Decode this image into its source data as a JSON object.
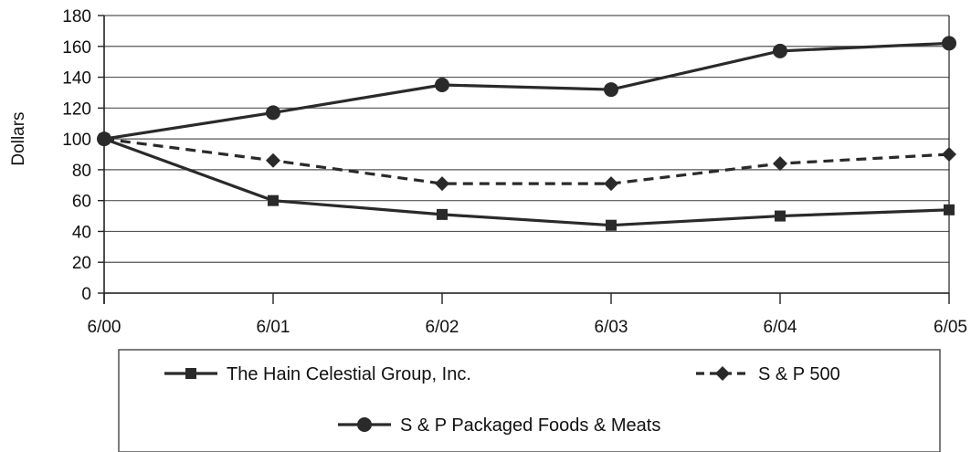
{
  "chart_data": {
    "type": "line",
    "title": "",
    "xlabel": "",
    "ylabel": "Dollars",
    "categories": [
      "6/00",
      "6/01",
      "6/02",
      "6/03",
      "6/04",
      "6/05"
    ],
    "ylim": [
      0,
      180
    ],
    "yticks": [
      0,
      20,
      40,
      60,
      80,
      100,
      120,
      140,
      160,
      180
    ],
    "grid": "horizontal",
    "legend_position": "bottom",
    "series": [
      {
        "name": "The Hain Celestial Group, Inc.",
        "values": [
          100,
          60,
          51,
          44,
          50,
          54
        ],
        "marker": "square",
        "line_style": "solid",
        "color": "#2a2a2a"
      },
      {
        "name": "S & P 500",
        "values": [
          100,
          86,
          71,
          71,
          84,
          90
        ],
        "marker": "diamond",
        "line_style": "dashed",
        "color": "#2a2a2a"
      },
      {
        "name": "S & P Packaged Foods & Meats",
        "values": [
          100,
          117,
          135,
          132,
          157,
          162
        ],
        "marker": "circle",
        "line_style": "solid",
        "color": "#2a2a2a"
      }
    ]
  }
}
